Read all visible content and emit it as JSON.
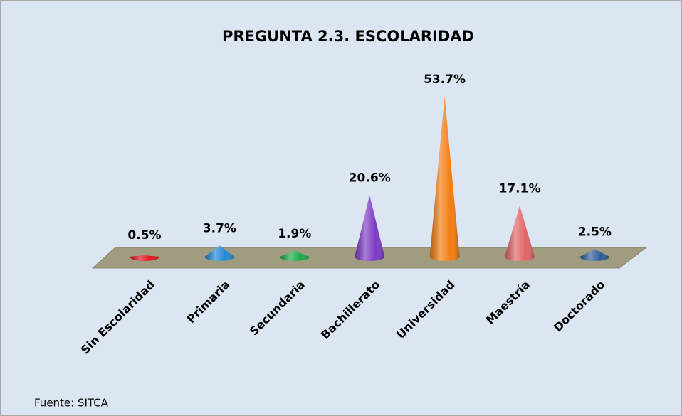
{
  "chart_data": {
    "type": "cone",
    "title": "PREGUNTA 2.3. ESCOLARIDAD",
    "categories": [
      "Sin Escolaridad",
      "Primaria",
      "Secundaria",
      "Bachillerato",
      "Universidad",
      "Maestría",
      "Doctorado"
    ],
    "values": [
      0.5,
      3.7,
      1.9,
      20.6,
      53.7,
      17.1,
      2.5
    ],
    "value_labels": [
      "0.5%",
      "3.7%",
      "1.9%",
      "20.6%",
      "53.7%",
      "17.1%",
      "2.5%"
    ],
    "colors": [
      "#e3101a",
      "#1f86d6",
      "#1aa846",
      "#7c38c4",
      "#f47c10",
      "#e06464",
      "#2e5c99"
    ],
    "source": "Fuente: SITCA"
  }
}
